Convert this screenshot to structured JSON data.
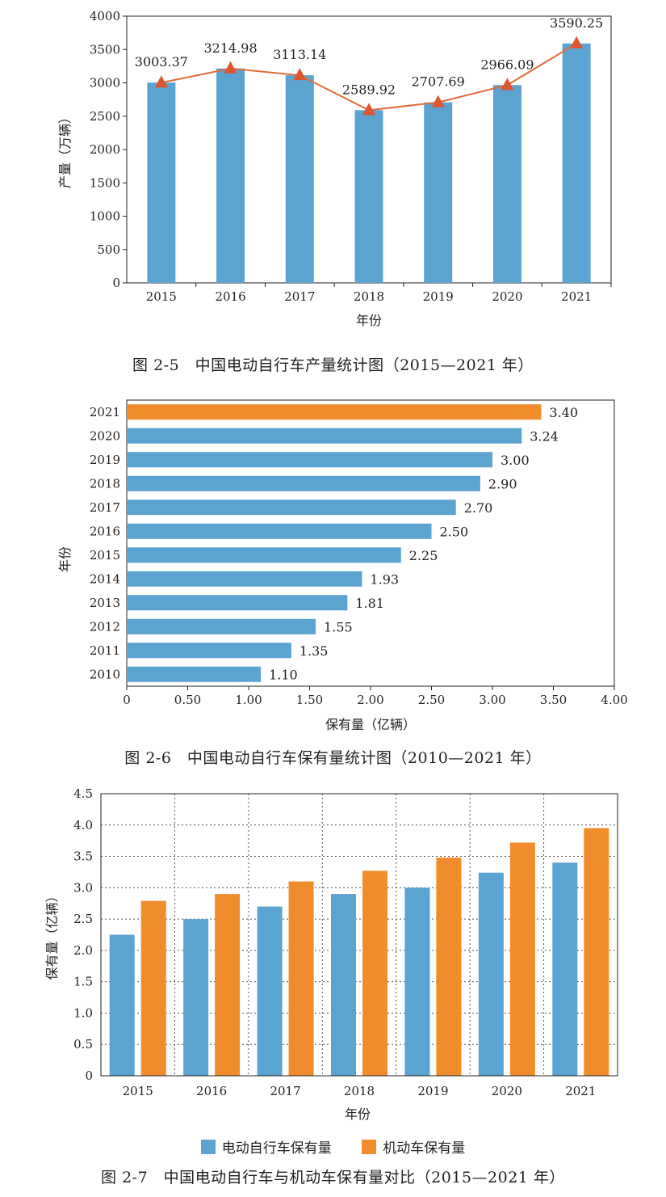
{
  "colors": {
    "blue": "#5ba3d0",
    "orange": "#f08c2c",
    "line": "#e06a3a",
    "marker": "#e0562c",
    "axis": "#231f20"
  },
  "figures": [
    {
      "caption": "图 2-5　中国电动自行车产量统计图（2015—2021 年）",
      "chart_data": {
        "type": "bar",
        "categories": [
          "2015",
          "2016",
          "2017",
          "2018",
          "2019",
          "2020",
          "2021"
        ],
        "values": [
          3003.37,
          3214.98,
          3113.14,
          2589.92,
          2707.69,
          2966.09,
          3590.25
        ],
        "data_labels": [
          "3003.37",
          "3214.98",
          "3113.14",
          "2589.92",
          "2707.69",
          "2966.09",
          "3590.25"
        ],
        "overlay": "line-with-triangle-markers",
        "xlabel": "年份",
        "ylabel": "产量（万辆）",
        "ylim": [
          0,
          4000
        ],
        "yticks": [
          "0",
          "500",
          "1000",
          "1500",
          "2000",
          "2500",
          "3000",
          "3500",
          "4000"
        ],
        "grid": false
      }
    },
    {
      "caption": "图 2-6　中国电动自行车保有量统计图（2010—2021 年）",
      "chart_data": {
        "type": "bar",
        "orientation": "horizontal",
        "categories": [
          "2021",
          "2020",
          "2019",
          "2018",
          "2017",
          "2016",
          "2015",
          "2014",
          "2013",
          "2012",
          "2011",
          "2010"
        ],
        "values": [
          3.4,
          3.24,
          3.0,
          2.9,
          2.7,
          2.5,
          2.25,
          1.93,
          1.81,
          1.55,
          1.35,
          1.1
        ],
        "data_labels": [
          "3.40",
          "3.24",
          "3.00",
          "2.90",
          "2.70",
          "2.50",
          "2.25",
          "1.93",
          "1.81",
          "1.55",
          "1.35",
          "1.10"
        ],
        "highlight_category": "2021",
        "xlabel": "保有量（亿辆）",
        "ylabel": "年份",
        "xlim": [
          0,
          4.0
        ],
        "xticks": [
          "0",
          "0.50",
          "1.00",
          "1.50",
          "2.00",
          "2.50",
          "3.00",
          "3.50",
          "4.00"
        ],
        "grid": false
      }
    },
    {
      "caption": "图 2-7　中国电动自行车与机动车保有量对比（2015—2021 年）",
      "chart_data": {
        "type": "bar",
        "categories": [
          "2015",
          "2016",
          "2017",
          "2018",
          "2019",
          "2020",
          "2021"
        ],
        "series": [
          {
            "name": "电动自行车保有量",
            "values": [
              2.25,
              2.5,
              2.7,
              2.9,
              3.0,
              3.24,
              3.4
            ]
          },
          {
            "name": "机动车保有量",
            "values": [
              2.79,
              2.9,
              3.1,
              3.27,
              3.48,
              3.72,
              3.95
            ]
          }
        ],
        "xlabel": "年份",
        "ylabel": "保有量（亿辆）",
        "ylim": [
          0,
          4.5
        ],
        "yticks": [
          "0",
          "0.5",
          "1.0",
          "1.5",
          "2.0",
          "2.5",
          "3.0",
          "3.5",
          "4.0",
          "4.5"
        ],
        "grid": true,
        "legend_position": "bottom"
      }
    }
  ]
}
